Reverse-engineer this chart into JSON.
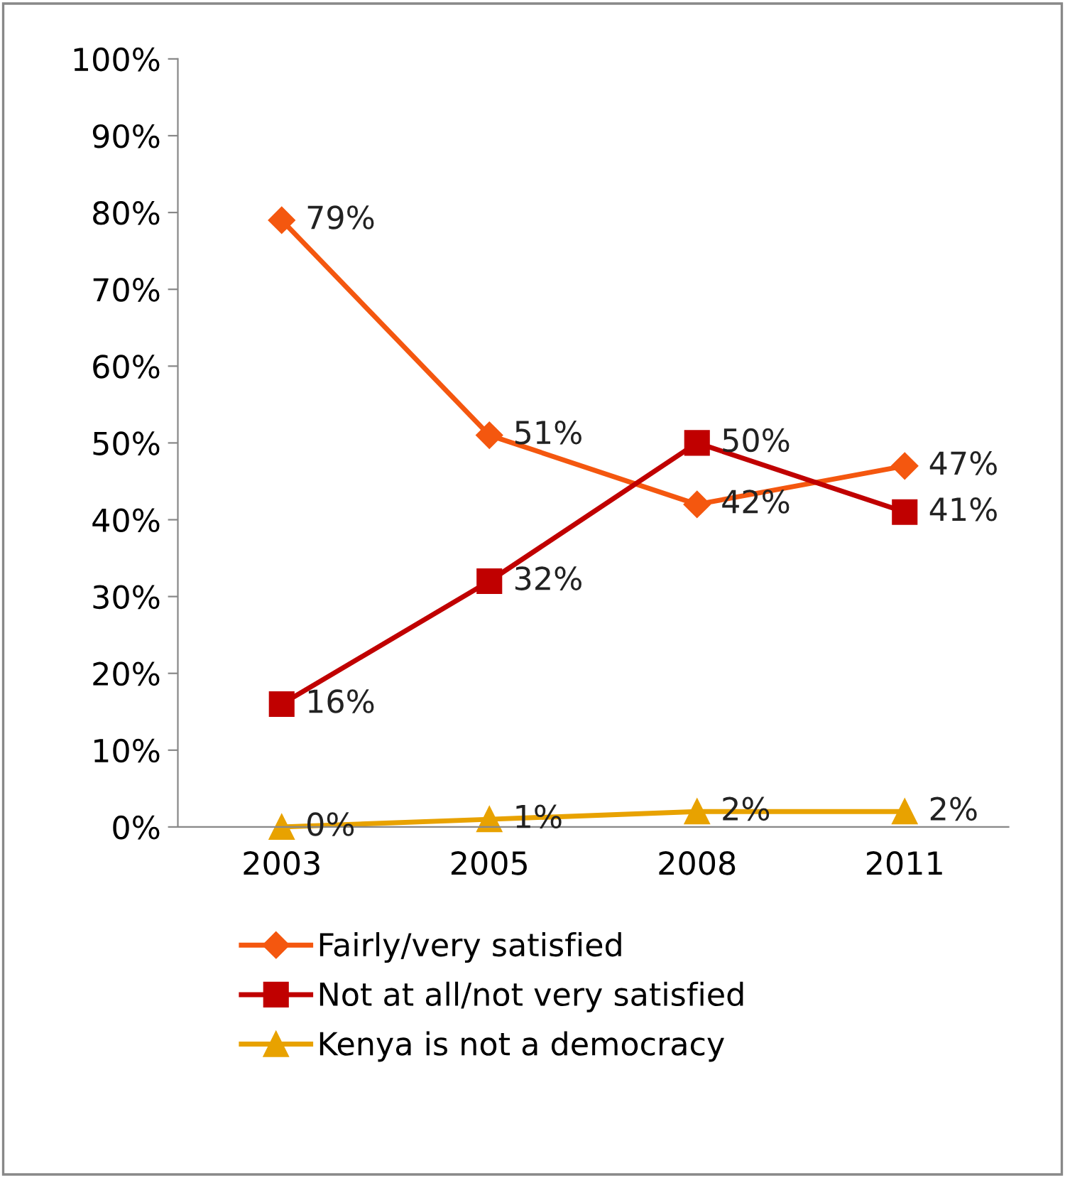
{
  "chart_data": {
    "type": "line",
    "categories": [
      "2003",
      "2005",
      "2008",
      "2011"
    ],
    "series": [
      {
        "name": "Fairly/very satisfied",
        "color": "#f4570f",
        "marker": "diamond",
        "values": [
          79,
          51,
          42,
          47
        ],
        "value_labels": [
          "79%",
          "51%",
          "42%",
          "47%"
        ]
      },
      {
        "name": "Not at all/not very satisfied",
        "color": "#c00000",
        "marker": "square",
        "values": [
          16,
          32,
          50,
          41
        ],
        "value_labels": [
          "16%",
          "32%",
          "50%",
          "41%"
        ]
      },
      {
        "name": "Kenya is not a democracy",
        "color": "#e8a200",
        "marker": "triangle",
        "values": [
          0,
          1,
          2,
          2
        ],
        "value_labels": [
          "0%",
          "1%",
          "2%",
          "2%"
        ]
      }
    ],
    "ylim": [
      0,
      100
    ],
    "yticks": [
      {
        "value": 0,
        "label": "0%"
      },
      {
        "value": 10,
        "label": "10%"
      },
      {
        "value": 20,
        "label": "20%"
      },
      {
        "value": 30,
        "label": "30%"
      },
      {
        "value": 40,
        "label": "40%"
      },
      {
        "value": 50,
        "label": "50%"
      },
      {
        "value": 60,
        "label": "60%"
      },
      {
        "value": 70,
        "label": "70%"
      },
      {
        "value": 80,
        "label": "80%"
      },
      {
        "value": 90,
        "label": "90%"
      },
      {
        "value": 100,
        "label": "100%"
      }
    ],
    "grid": false,
    "legend": "bottom",
    "line_style": "solid"
  }
}
